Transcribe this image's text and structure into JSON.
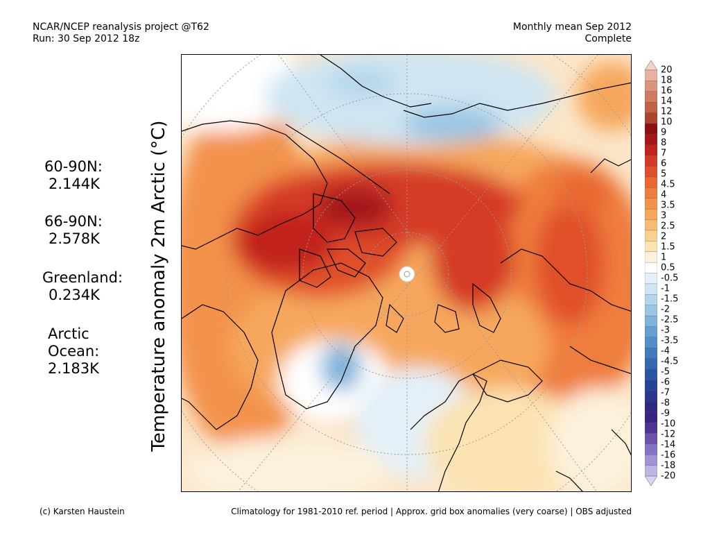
{
  "header": {
    "left_line1": "NCAR/NCEP reanalysis project @T62",
    "left_line2": "Run: 30 Sep 2012 18z",
    "right_line1": "Monthly mean Sep 2012",
    "right_line2": "Complete"
  },
  "y_axis_label": "Temperature anomaly 2m Arctic (°C)",
  "stats": [
    {
      "label": "60-90N:",
      "value": "2.144K"
    },
    {
      "label": "66-90N:",
      "value": "2.578K"
    },
    {
      "label": "Greenland:",
      "value": "0.234K"
    },
    {
      "label_line1": "Arctic",
      "label_line2": "Ocean:",
      "value": "2.183K"
    }
  ],
  "footer": {
    "left": "(c) Karsten Haustein",
    "right": "Climatology for 1981-2010 ref. period | Approx. grid box anomalies (very coarse) | OBS adjusted"
  },
  "colorbar": {
    "labels": [
      "20",
      "18",
      "16",
      "14",
      "12",
      "10",
      "9",
      "8",
      "7",
      "6",
      "5",
      "4.5",
      "4",
      "3.5",
      "3",
      "2.5",
      "2",
      "1.5",
      "1",
      "0.5",
      "-0.5",
      "-1",
      "-1.5",
      "-2",
      "-2.5",
      "-3",
      "-3.5",
      "-4",
      "-4.5",
      "-5",
      "-6",
      "-7",
      "-8",
      "-9",
      "-10",
      "-12",
      "-14",
      "-16",
      "-18",
      "-20"
    ],
    "colors": [
      "#f3d2c8",
      "#e7b29f",
      "#db957d",
      "#cf7b60",
      "#c06148",
      "#ad4430",
      "#8e0f12",
      "#a5171a",
      "#c1231f",
      "#d53a26",
      "#e04f2c",
      "#e86733",
      "#ef7d3d",
      "#f3924b",
      "#f6a75d",
      "#f8bb71",
      "#fad08e",
      "#fce3b2",
      "#fdf1db",
      "#ffffff",
      "#e3f0f8",
      "#cfe5f2",
      "#b4d6ec",
      "#99c6e4",
      "#7eb3da",
      "#66a0d0",
      "#528ec7",
      "#417bbd",
      "#3468b1",
      "#2a55a3",
      "#264497",
      "#2a378c",
      "#30297f",
      "#3b2383",
      "#4e3594",
      "#6a52ad",
      "#8672c3",
      "#a293d5",
      "#beb4e5",
      "#d9d3f1"
    ]
  },
  "map_colors": {
    "land_outline": "#000000",
    "graticule": "#999999",
    "pole_marker": "#ffffff"
  }
}
